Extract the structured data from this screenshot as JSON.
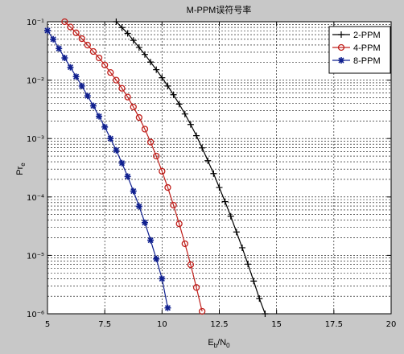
{
  "chart_data": {
    "type": "line",
    "title": "M-PPM误符号率",
    "xlabel": [
      "E",
      "b",
      "/N",
      "0"
    ],
    "ylabel": [
      "Pr",
      "e"
    ],
    "xlim": [
      5,
      20
    ],
    "xticks": [
      5,
      7.5,
      10,
      12.5,
      15,
      17.5,
      20
    ],
    "ylim": [
      1e-06,
      0.1
    ],
    "log_y": true,
    "grid": true,
    "minor_grid": true,
    "legend": "top-right",
    "yticks": [
      {
        "value": 1e-06,
        "label": "10⁻⁶"
      },
      {
        "value": 1e-05,
        "label": "10⁻⁵"
      },
      {
        "value": 0.0001,
        "label": "10⁻⁴"
      },
      {
        "value": 0.001,
        "label": "10⁻³"
      },
      {
        "value": 0.01,
        "label": "10⁻²"
      },
      {
        "value": 0.1,
        "label": "10⁻¹"
      }
    ],
    "series": [
      {
        "name": "2-PPM",
        "color": "#000000",
        "marker": "+",
        "x": [
          8,
          8.25,
          8.5,
          8.75,
          9,
          9.25,
          9.5,
          9.75,
          10,
          10.25,
          10.5,
          10.75,
          11,
          11.25,
          11.5,
          11.75,
          12,
          12.25,
          12.5,
          12.75,
          13,
          13.25,
          13.5,
          13.75,
          14,
          14.25,
          14.5
        ],
        "values": [
          0.1,
          0.0794,
          0.0631,
          0.0479,
          0.0363,
          0.0275,
          0.0204,
          0.0151,
          0.011,
          0.00794,
          0.00562,
          0.00389,
          0.00263,
          0.00174,
          0.00112,
          0.000692,
          0.000417,
          0.000251,
          0.000145,
          8.32e-05,
          4.68e-05,
          2.51e-05,
          1.35e-05,
          7.08e-06,
          3.63e-06,
          1.82e-06,
          1e-06
        ]
      },
      {
        "name": "4-PPM",
        "color": "#c0201c",
        "marker": "o",
        "x": [
          5.75,
          6,
          6.25,
          6.5,
          6.75,
          7,
          7.25,
          7.5,
          7.75,
          8,
          8.25,
          8.5,
          8.75,
          9,
          9.25,
          9.5,
          9.75,
          10,
          10.25,
          10.5,
          10.75,
          11,
          11.25,
          11.5,
          11.75
        ],
        "values": [
          0.1,
          0.0813,
          0.0646,
          0.0513,
          0.0398,
          0.0309,
          0.024,
          0.0182,
          0.0135,
          0.01,
          0.00724,
          0.00513,
          0.00347,
          0.00229,
          0.00145,
          0.000871,
          0.000501,
          0.000275,
          0.000145,
          7.24e-05,
          3.47e-05,
          1.58e-05,
          6.92e-06,
          2.82e-06,
          1.1e-06
        ]
      },
      {
        "name": "8-PPM",
        "color": "#10208f",
        "marker": "*",
        "x": [
          5,
          5.25,
          5.5,
          5.75,
          6,
          6.25,
          6.5,
          6.75,
          7,
          7.25,
          7.5,
          7.75,
          8,
          8.25,
          8.5,
          8.75,
          9,
          9.25,
          9.5,
          9.75,
          10,
          10.25
        ],
        "values": [
          0.0708,
          0.0501,
          0.0347,
          0.024,
          0.0166,
          0.0115,
          0.00794,
          0.00537,
          0.00363,
          0.0024,
          0.00158,
          0.001,
          0.000631,
          0.00038,
          0.000224,
          0.000126,
          6.92e-05,
          3.63e-05,
          1.82e-05,
          8.7e-06,
          3.98e-06,
          1.26e-06
        ]
      }
    ]
  }
}
